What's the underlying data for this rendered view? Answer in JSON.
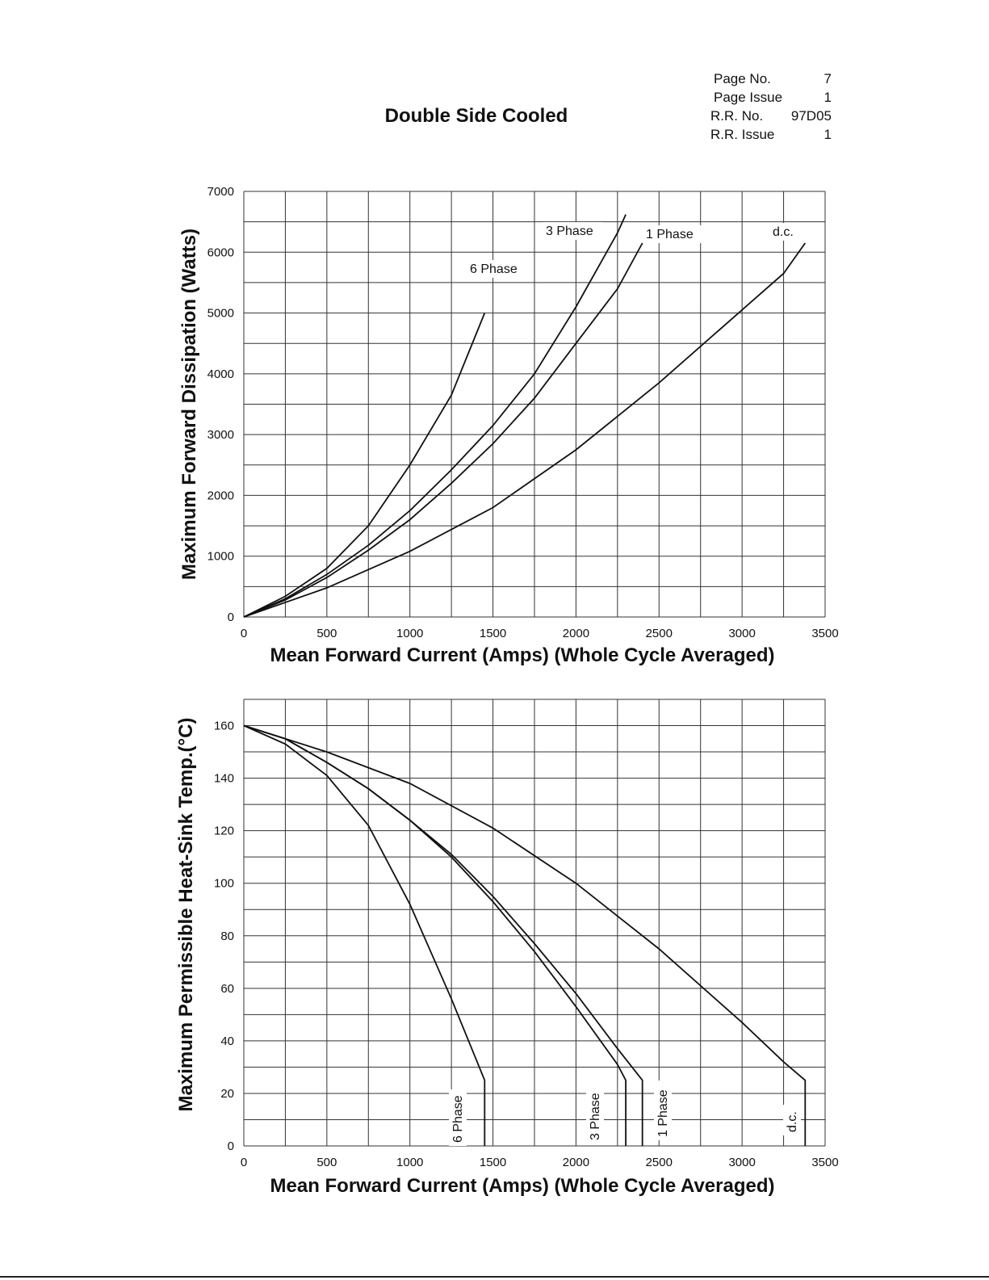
{
  "header": {
    "title": "Double Side Cooled",
    "info": [
      {
        "label": "Page No.",
        "value": "7"
      },
      {
        "label": "Page Issue",
        "value": "1"
      },
      {
        "label": "R.R. No.",
        "value": "97D05"
      },
      {
        "label": "R.R. Issue",
        "value": "1"
      }
    ]
  },
  "chart_data": [
    {
      "type": "line",
      "title": "",
      "xlabel": "Mean Forward Current (Amps) (Whole Cycle Averaged)",
      "ylabel": "Maximum Forward Dissipation (Watts)",
      "xlim": [
        0,
        3500
      ],
      "ylim": [
        0,
        7000
      ],
      "x_ticks": [
        "0",
        "500",
        "1000",
        "1500",
        "2000",
        "2500",
        "3000",
        "3500"
      ],
      "y_ticks": [
        "0",
        "1000",
        "2000",
        "3000",
        "4000",
        "5000",
        "6000",
        "7000"
      ],
      "grid": true,
      "series": [
        {
          "name": "6 Phase",
          "points": [
            [
              0,
              0
            ],
            [
              250,
              340
            ],
            [
              500,
              800
            ],
            [
              750,
              1500
            ],
            [
              1000,
              2500
            ],
            [
              1250,
              3650
            ],
            [
              1450,
              5000
            ]
          ]
        },
        {
          "name": "3 Phase",
          "points": [
            [
              0,
              0
            ],
            [
              250,
              300
            ],
            [
              500,
              700
            ],
            [
              750,
              1180
            ],
            [
              1000,
              1750
            ],
            [
              1250,
              2420
            ],
            [
              1500,
              3150
            ],
            [
              1750,
              4000
            ],
            [
              2000,
              5100
            ],
            [
              2250,
              6320
            ],
            [
              2300,
              6620
            ]
          ]
        },
        {
          "name": "1 Phase",
          "points": [
            [
              0,
              0
            ],
            [
              250,
              280
            ],
            [
              500,
              650
            ],
            [
              750,
              1100
            ],
            [
              1000,
              1600
            ],
            [
              1250,
              2200
            ],
            [
              1500,
              2850
            ],
            [
              1750,
              3600
            ],
            [
              2000,
              4500
            ],
            [
              2250,
              5400
            ],
            [
              2400,
              6150
            ]
          ]
        },
        {
          "name": "d.c.",
          "points": [
            [
              0,
              0
            ],
            [
              500,
              480
            ],
            [
              1000,
              1080
            ],
            [
              1500,
              1800
            ],
            [
              2000,
              2750
            ],
            [
              2500,
              3850
            ],
            [
              3000,
              5050
            ],
            [
              3250,
              5650
            ],
            [
              3380,
              6150
            ]
          ]
        }
      ]
    },
    {
      "type": "line",
      "title": "",
      "xlabel": "Mean Forward Current (Amps) (Whole Cycle Averaged)",
      "ylabel": "Maximum Permissible Heat-Sink Temp.(°C)",
      "xlim": [
        0,
        3500
      ],
      "ylim": [
        0,
        170
      ],
      "x_ticks": [
        "0",
        "500",
        "1000",
        "1500",
        "2000",
        "2500",
        "3000",
        "3500"
      ],
      "y_ticks": [
        "0",
        "20",
        "40",
        "60",
        "80",
        "100",
        "120",
        "140",
        "160"
      ],
      "grid": true,
      "series": [
        {
          "name": "6 Phase",
          "points": [
            [
              0,
              160
            ],
            [
              250,
              153
            ],
            [
              500,
              141
            ],
            [
              750,
              122
            ],
            [
              1000,
              92
            ],
            [
              1250,
              56
            ],
            [
              1450,
              25
            ],
            [
              1450,
              0
            ]
          ]
        },
        {
          "name": "3 Phase",
          "points": [
            [
              0,
              160
            ],
            [
              250,
              155
            ],
            [
              500,
              146
            ],
            [
              750,
              136
            ],
            [
              1000,
              124
            ],
            [
              1250,
              110
            ],
            [
              1500,
              93
            ],
            [
              1750,
              74
            ],
            [
              2000,
              53
            ],
            [
              2250,
              31
            ],
            [
              2300,
              25
            ],
            [
              2300,
              0
            ]
          ]
        },
        {
          "name": "1 Phase",
          "points": [
            [
              0,
              160
            ],
            [
              250,
              155
            ],
            [
              500,
              146
            ],
            [
              750,
              136
            ],
            [
              1000,
              124
            ],
            [
              1250,
              111
            ],
            [
              1500,
              95
            ],
            [
              1750,
              77
            ],
            [
              2000,
              58
            ],
            [
              2250,
              37
            ],
            [
              2400,
              25
            ],
            [
              2400,
              0
            ]
          ]
        },
        {
          "name": "d.c.",
          "points": [
            [
              0,
              160
            ],
            [
              500,
              150
            ],
            [
              1000,
              138
            ],
            [
              1500,
              121
            ],
            [
              2000,
              100
            ],
            [
              2500,
              75
            ],
            [
              3000,
              47
            ],
            [
              3250,
              32
            ],
            [
              3380,
              25
            ],
            [
              3380,
              0
            ]
          ]
        }
      ]
    }
  ]
}
